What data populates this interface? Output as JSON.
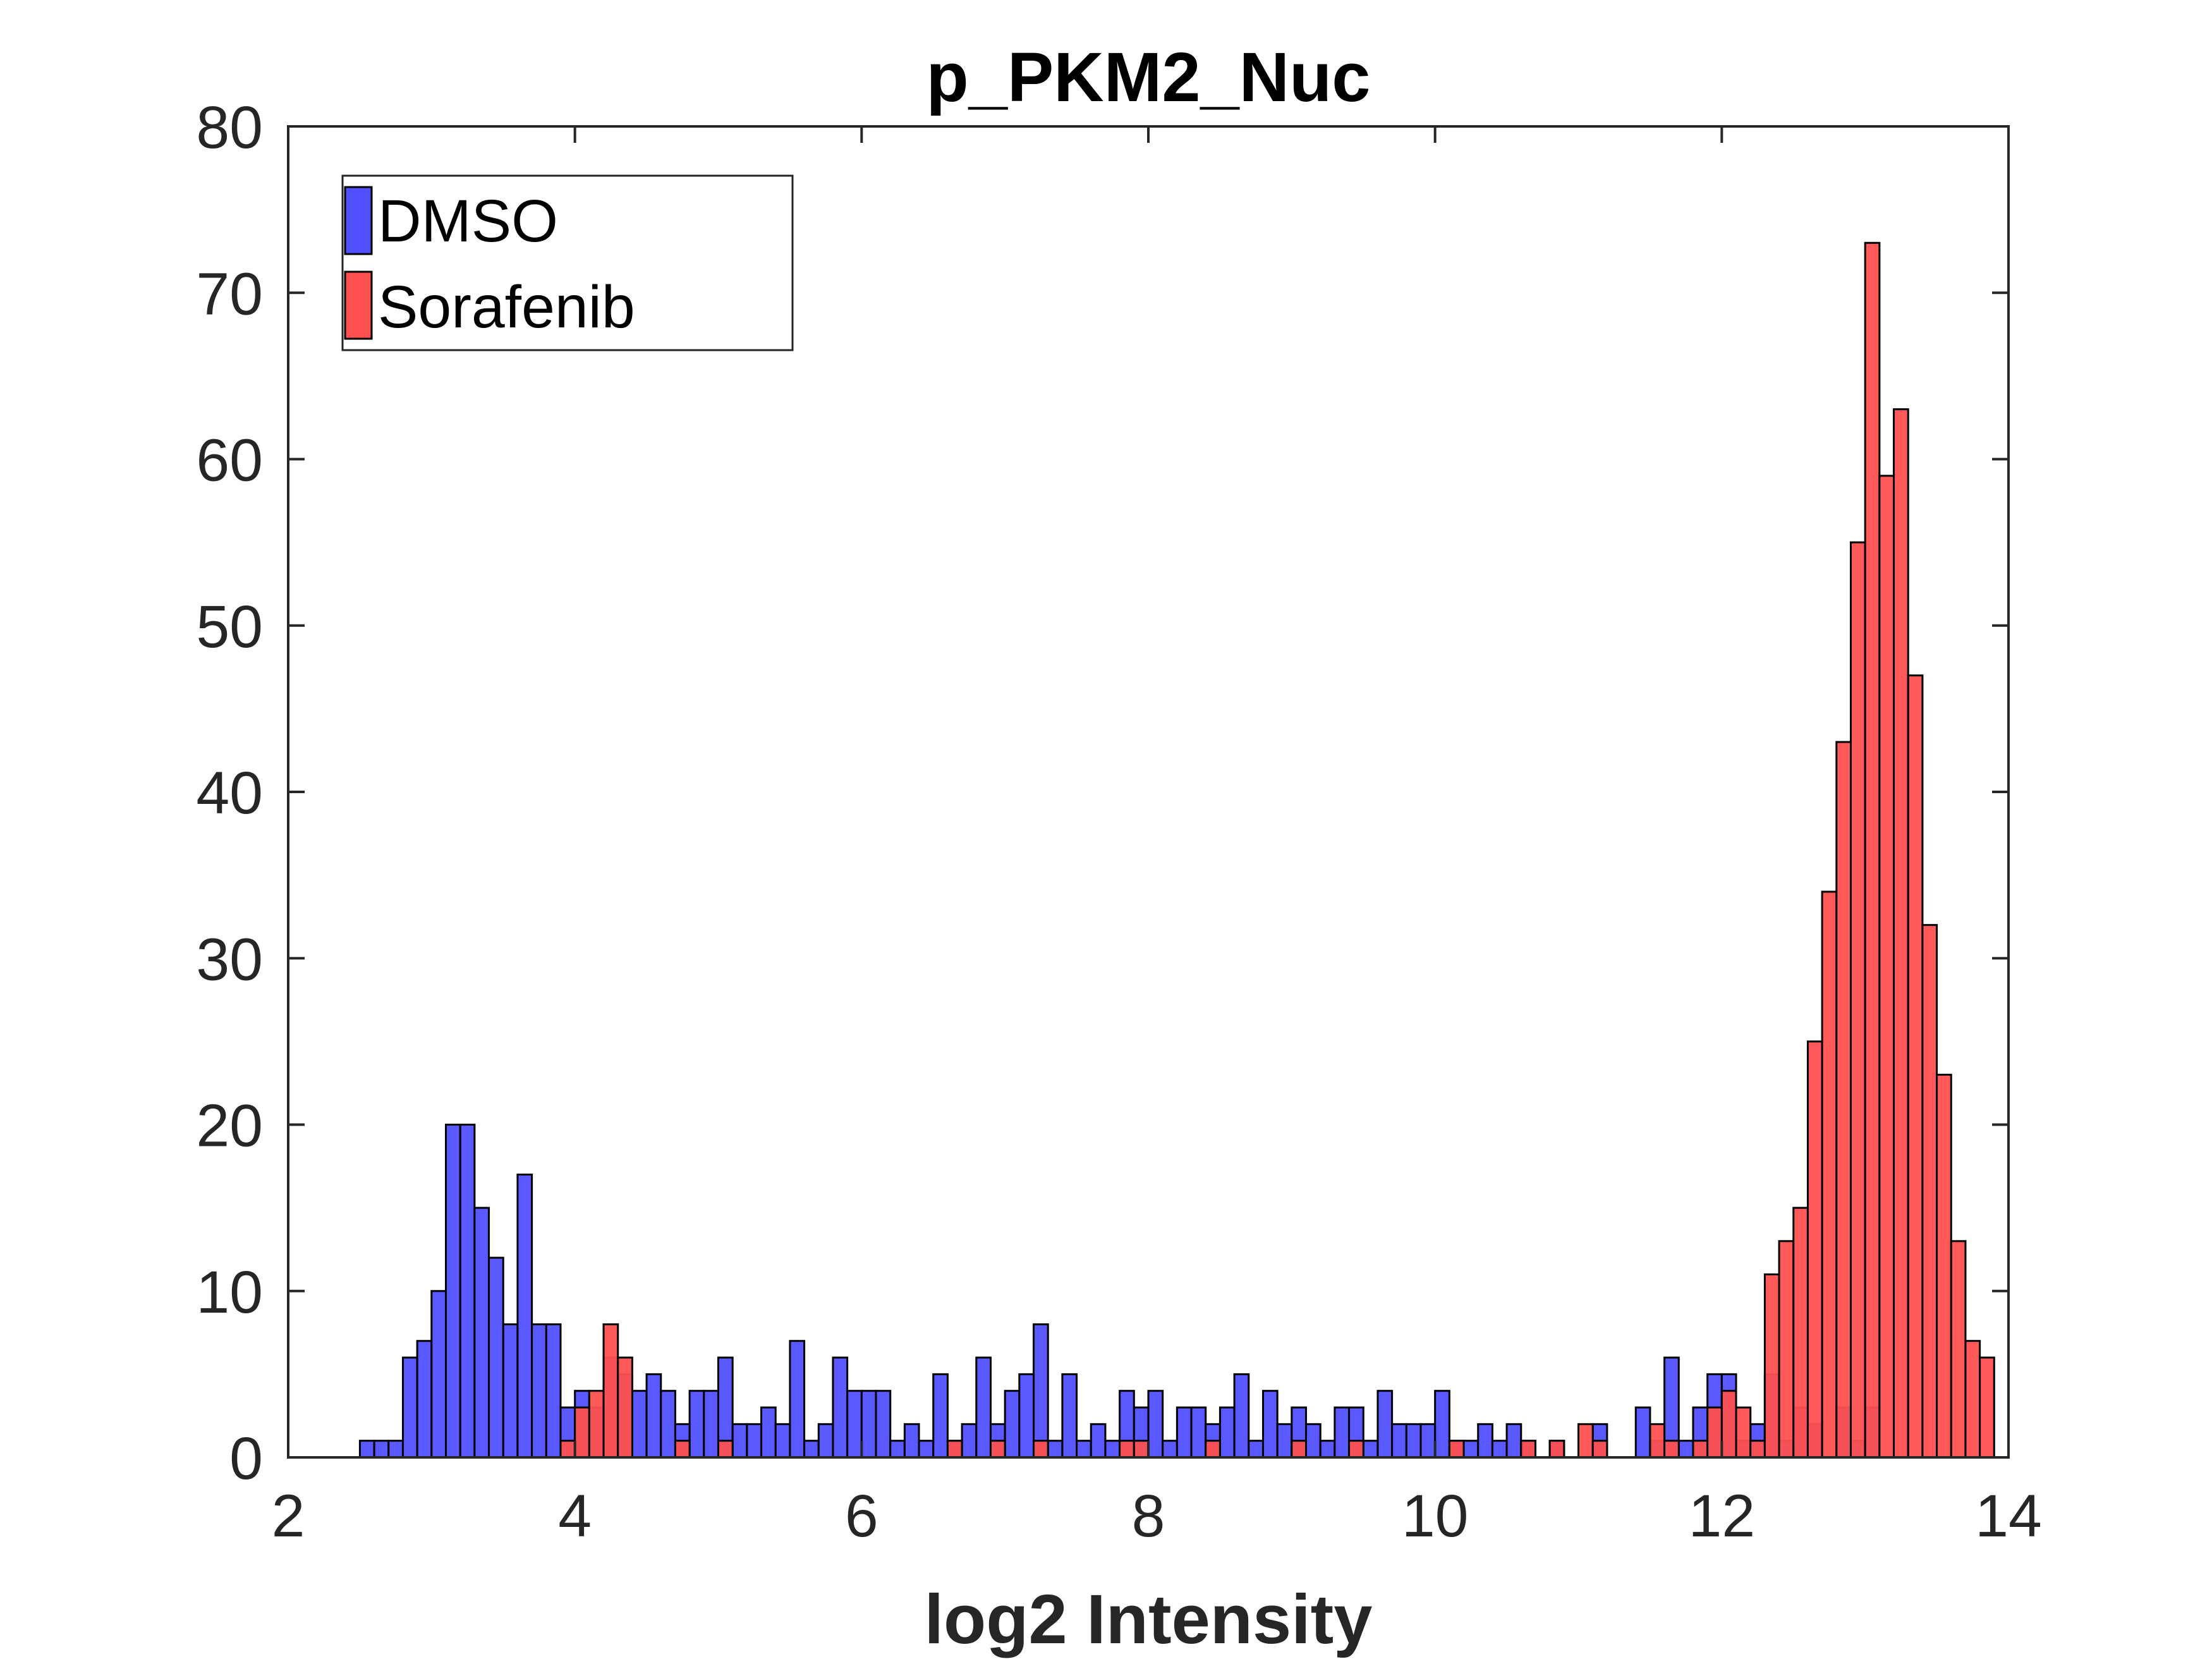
{
  "chart_data": {
    "type": "histogram",
    "title": "p_PKM2_Nuc",
    "xlabel": "log2 Intensity",
    "ylabel": "",
    "xlim": [
      2,
      14
    ],
    "ylim": [
      0,
      80
    ],
    "xticks": [
      "2",
      "4",
      "6",
      "8",
      "10",
      "12",
      "14"
    ],
    "yticks": [
      "0",
      "10",
      "20",
      "30",
      "40",
      "50",
      "60",
      "70",
      "80"
    ],
    "bin_width": 0.1,
    "legend_position": "top-left",
    "grid": false,
    "series": [
      {
        "name": "DMSO",
        "color": "#5050ff",
        "bins": [
          [
            2.5,
            1
          ],
          [
            2.6,
            1
          ],
          [
            2.7,
            1
          ],
          [
            2.8,
            6
          ],
          [
            2.9,
            7
          ],
          [
            3.0,
            10
          ],
          [
            3.1,
            20
          ],
          [
            3.2,
            20
          ],
          [
            3.3,
            15
          ],
          [
            3.4,
            12
          ],
          [
            3.5,
            8
          ],
          [
            3.6,
            17
          ],
          [
            3.7,
            8
          ],
          [
            3.8,
            8
          ],
          [
            3.9,
            3
          ],
          [
            4.0,
            4
          ],
          [
            4.1,
            3
          ],
          [
            4.2,
            6
          ],
          [
            4.3,
            5
          ],
          [
            4.4,
            4
          ],
          [
            4.5,
            5
          ],
          [
            4.6,
            4
          ],
          [
            4.7,
            2
          ],
          [
            4.8,
            4
          ],
          [
            4.9,
            4
          ],
          [
            5.0,
            6
          ],
          [
            5.1,
            2
          ],
          [
            5.2,
            2
          ],
          [
            5.3,
            3
          ],
          [
            5.4,
            2
          ],
          [
            5.5,
            7
          ],
          [
            5.6,
            1
          ],
          [
            5.7,
            2
          ],
          [
            5.8,
            6
          ],
          [
            5.9,
            4
          ],
          [
            6.0,
            4
          ],
          [
            6.1,
            4
          ],
          [
            6.2,
            1
          ],
          [
            6.3,
            2
          ],
          [
            6.4,
            1
          ],
          [
            6.5,
            5
          ],
          [
            6.6,
            1
          ],
          [
            6.7,
            2
          ],
          [
            6.8,
            6
          ],
          [
            6.9,
            2
          ],
          [
            7.0,
            4
          ],
          [
            7.1,
            5
          ],
          [
            7.2,
            8
          ],
          [
            7.3,
            1
          ],
          [
            7.4,
            5
          ],
          [
            7.5,
            1
          ],
          [
            7.6,
            2
          ],
          [
            7.7,
            1
          ],
          [
            7.8,
            4
          ],
          [
            7.9,
            3
          ],
          [
            8.0,
            4
          ],
          [
            8.1,
            1
          ],
          [
            8.2,
            3
          ],
          [
            8.3,
            3
          ],
          [
            8.4,
            2
          ],
          [
            8.5,
            3
          ],
          [
            8.6,
            5
          ],
          [
            8.7,
            1
          ],
          [
            8.8,
            4
          ],
          [
            8.9,
            2
          ],
          [
            9.0,
            3
          ],
          [
            9.1,
            2
          ],
          [
            9.2,
            1
          ],
          [
            9.3,
            3
          ],
          [
            9.4,
            3
          ],
          [
            9.5,
            1
          ],
          [
            9.6,
            4
          ],
          [
            9.7,
            2
          ],
          [
            9.8,
            2
          ],
          [
            9.9,
            2
          ],
          [
            10.0,
            4
          ],
          [
            10.1,
            1
          ],
          [
            10.2,
            1
          ],
          [
            10.3,
            2
          ],
          [
            10.4,
            1
          ],
          [
            10.5,
            2
          ],
          [
            10.6,
            1
          ],
          [
            10.8,
            1
          ],
          [
            11.1,
            2
          ],
          [
            11.4,
            3
          ],
          [
            11.5,
            1
          ],
          [
            11.6,
            6
          ],
          [
            11.7,
            1
          ],
          [
            11.8,
            3
          ],
          [
            11.9,
            5
          ],
          [
            12.0,
            5
          ],
          [
            12.1,
            1
          ],
          [
            12.2,
            2
          ],
          [
            12.3,
            5
          ],
          [
            12.4,
            1
          ],
          [
            12.5,
            3
          ],
          [
            12.6,
            2
          ],
          [
            12.8,
            3
          ],
          [
            12.9,
            1
          ],
          [
            13.0,
            3
          ]
        ]
      },
      {
        "name": "Sorafenib",
        "color": "#ff5050",
        "bins": [
          [
            3.9,
            1
          ],
          [
            4.0,
            3
          ],
          [
            4.1,
            4
          ],
          [
            4.2,
            8
          ],
          [
            4.3,
            6
          ],
          [
            4.7,
            1
          ],
          [
            5.0,
            1
          ],
          [
            6.6,
            1
          ],
          [
            6.9,
            1
          ],
          [
            7.2,
            1
          ],
          [
            7.8,
            1
          ],
          [
            7.9,
            1
          ],
          [
            8.4,
            1
          ],
          [
            9.0,
            1
          ],
          [
            9.4,
            1
          ],
          [
            10.1,
            1
          ],
          [
            10.6,
            1
          ],
          [
            10.8,
            1
          ],
          [
            11.0,
            2
          ],
          [
            11.1,
            1
          ],
          [
            11.5,
            2
          ],
          [
            11.6,
            1
          ],
          [
            11.8,
            1
          ],
          [
            11.9,
            3
          ],
          [
            12.0,
            4
          ],
          [
            12.1,
            3
          ],
          [
            12.2,
            1
          ],
          [
            12.3,
            11
          ],
          [
            12.4,
            13
          ],
          [
            12.5,
            15
          ],
          [
            12.6,
            25
          ],
          [
            12.7,
            34
          ],
          [
            12.8,
            43
          ],
          [
            12.9,
            55
          ],
          [
            13.0,
            73
          ],
          [
            13.1,
            59
          ],
          [
            13.2,
            63
          ],
          [
            13.3,
            47
          ],
          [
            13.4,
            32
          ],
          [
            13.5,
            23
          ],
          [
            13.6,
            13
          ],
          [
            13.7,
            7
          ],
          [
            13.8,
            6
          ]
        ]
      }
    ]
  }
}
